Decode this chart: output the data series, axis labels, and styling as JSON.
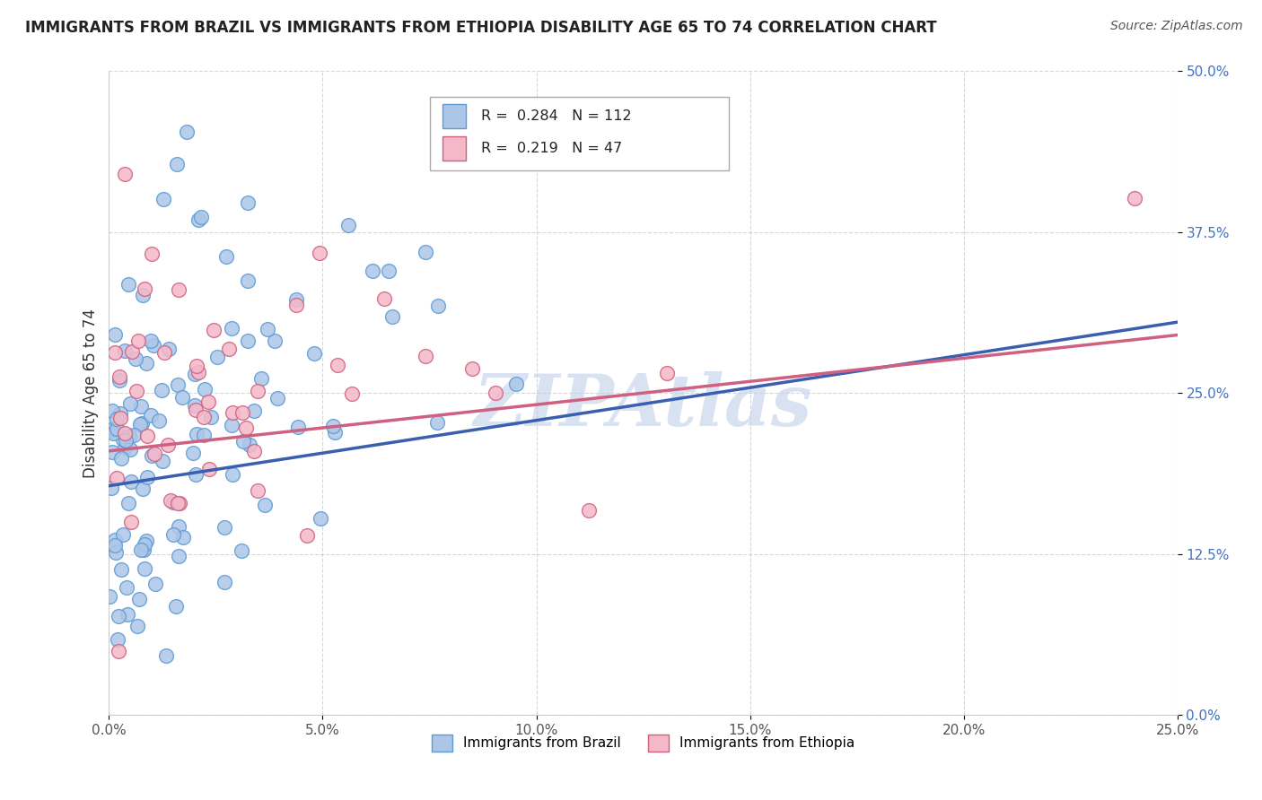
{
  "title": "IMMIGRANTS FROM BRAZIL VS IMMIGRANTS FROM ETHIOPIA DISABILITY AGE 65 TO 74 CORRELATION CHART",
  "source": "Source: ZipAtlas.com",
  "ylabel": "Disability Age 65 to 74",
  "xlim": [
    0.0,
    0.25
  ],
  "ylim": [
    0.0,
    0.5
  ],
  "xticks": [
    0.0,
    0.05,
    0.1,
    0.15,
    0.2,
    0.25
  ],
  "xticklabels": [
    "0.0%",
    "5.0%",
    "10.0%",
    "15.0%",
    "20.0%",
    "25.0%"
  ],
  "yticks": [
    0.0,
    0.125,
    0.25,
    0.375,
    0.5
  ],
  "yticklabels": [
    "0.0%",
    "12.5%",
    "25.0%",
    "37.5%",
    "50.0%"
  ],
  "brazil_color": "#adc6e8",
  "brazil_edge": "#5b9bd5",
  "ethiopia_color": "#f4b8c8",
  "ethiopia_edge": "#d06080",
  "brazil_line_color": "#3a5fb0",
  "ethiopia_line_color": "#d06080",
  "brazil_R": 0.284,
  "brazil_N": 112,
  "ethiopia_R": 0.219,
  "ethiopia_N": 47,
  "legend_label_brazil": "Immigrants from Brazil",
  "legend_label_ethiopia": "Immigrants from Ethiopia",
  "watermark": "ZIPAtlas",
  "watermark_color": "#c0d0e8",
  "background_color": "#ffffff",
  "grid_color": "#cccccc",
  "title_fontsize": 12,
  "axis_label_fontsize": 12,
  "tick_fontsize": 11,
  "brazil_line_x0": 0.0,
  "brazil_line_x1": 0.25,
  "brazil_line_y0": 0.178,
  "brazil_line_y1": 0.305,
  "ethiopia_line_x0": 0.0,
  "ethiopia_line_x1": 0.25,
  "ethiopia_line_y0": 0.205,
  "ethiopia_line_y1": 0.295
}
